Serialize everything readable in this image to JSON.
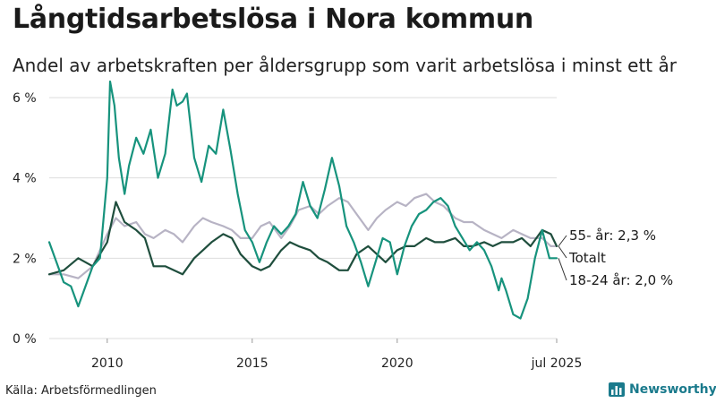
{
  "header": {
    "title": "Långtidsarbetslösa i Nora kommun",
    "subtitle": "Andel av arbetskraften per åldersgrupp som varit arbetslösa i minst ett år"
  },
  "footer": {
    "source": "Källa: Arbetsförmedlingen",
    "brand": "Newsworthy"
  },
  "chart_data": {
    "type": "line",
    "y_tick_labels": [
      "0 %",
      "2 %",
      "4 %",
      "6 %"
    ],
    "y_ticks": [
      0,
      2,
      4,
      6
    ],
    "ylim": [
      0,
      6.2
    ],
    "x_ticks": [
      {
        "x": 2010.0,
        "label": "2010"
      },
      {
        "x": 2015.0,
        "label": "2015"
      },
      {
        "x": 2020.0,
        "label": "2020"
      },
      {
        "x": 2025.5,
        "label": "jul 2025"
      }
    ],
    "xlim": [
      2008.0,
      2025.5
    ],
    "grid": true,
    "legend": "labels at line ends",
    "series": [
      {
        "name": "55- år",
        "end_label": "55- år: 2,3 %",
        "color": "#b7b3c4",
        "points": [
          [
            2008.0,
            1.6
          ],
          [
            2008.5,
            1.6
          ],
          [
            2009.0,
            1.5
          ],
          [
            2009.5,
            1.8
          ],
          [
            2010.0,
            2.6
          ],
          [
            2010.3,
            3.0
          ],
          [
            2010.6,
            2.8
          ],
          [
            2011.0,
            2.9
          ],
          [
            2011.3,
            2.6
          ],
          [
            2011.6,
            2.5
          ],
          [
            2012.0,
            2.7
          ],
          [
            2012.3,
            2.6
          ],
          [
            2012.6,
            2.4
          ],
          [
            2013.0,
            2.8
          ],
          [
            2013.3,
            3.0
          ],
          [
            2013.6,
            2.9
          ],
          [
            2014.0,
            2.8
          ],
          [
            2014.3,
            2.7
          ],
          [
            2014.6,
            2.5
          ],
          [
            2015.0,
            2.5
          ],
          [
            2015.3,
            2.8
          ],
          [
            2015.6,
            2.9
          ],
          [
            2016.0,
            2.5
          ],
          [
            2016.3,
            2.8
          ],
          [
            2016.6,
            3.2
          ],
          [
            2017.0,
            3.3
          ],
          [
            2017.3,
            3.1
          ],
          [
            2017.6,
            3.3
          ],
          [
            2018.0,
            3.5
          ],
          [
            2018.3,
            3.4
          ],
          [
            2018.6,
            3.1
          ],
          [
            2019.0,
            2.7
          ],
          [
            2019.3,
            3.0
          ],
          [
            2019.6,
            3.2
          ],
          [
            2020.0,
            3.4
          ],
          [
            2020.3,
            3.3
          ],
          [
            2020.6,
            3.5
          ],
          [
            2021.0,
            3.6
          ],
          [
            2021.3,
            3.4
          ],
          [
            2021.6,
            3.3
          ],
          [
            2022.0,
            3.0
          ],
          [
            2022.3,
            2.9
          ],
          [
            2022.6,
            2.9
          ],
          [
            2023.0,
            2.7
          ],
          [
            2023.3,
            2.6
          ],
          [
            2023.6,
            2.5
          ],
          [
            2024.0,
            2.7
          ],
          [
            2024.3,
            2.6
          ],
          [
            2024.6,
            2.5
          ],
          [
            2025.0,
            2.5
          ],
          [
            2025.3,
            2.3
          ],
          [
            2025.5,
            2.3
          ]
        ]
      },
      {
        "name": "Totalt",
        "end_label": "Totalt",
        "color": "#1f4e3d",
        "points": [
          [
            2008.0,
            1.6
          ],
          [
            2008.5,
            1.7
          ],
          [
            2009.0,
            2.0
          ],
          [
            2009.5,
            1.8
          ],
          [
            2010.0,
            2.4
          ],
          [
            2010.3,
            3.4
          ],
          [
            2010.6,
            2.9
          ],
          [
            2011.0,
            2.7
          ],
          [
            2011.3,
            2.5
          ],
          [
            2011.6,
            1.8
          ],
          [
            2012.0,
            1.8
          ],
          [
            2012.3,
            1.7
          ],
          [
            2012.6,
            1.6
          ],
          [
            2013.0,
            2.0
          ],
          [
            2013.3,
            2.2
          ],
          [
            2013.6,
            2.4
          ],
          [
            2014.0,
            2.6
          ],
          [
            2014.3,
            2.5
          ],
          [
            2014.6,
            2.1
          ],
          [
            2015.0,
            1.8
          ],
          [
            2015.3,
            1.7
          ],
          [
            2015.6,
            1.8
          ],
          [
            2016.0,
            2.2
          ],
          [
            2016.3,
            2.4
          ],
          [
            2016.6,
            2.3
          ],
          [
            2017.0,
            2.2
          ],
          [
            2017.3,
            2.0
          ],
          [
            2017.6,
            1.9
          ],
          [
            2018.0,
            1.7
          ],
          [
            2018.3,
            1.7
          ],
          [
            2018.6,
            2.1
          ],
          [
            2019.0,
            2.3
          ],
          [
            2019.3,
            2.1
          ],
          [
            2019.6,
            1.9
          ],
          [
            2020.0,
            2.2
          ],
          [
            2020.3,
            2.3
          ],
          [
            2020.6,
            2.3
          ],
          [
            2021.0,
            2.5
          ],
          [
            2021.3,
            2.4
          ],
          [
            2021.6,
            2.4
          ],
          [
            2022.0,
            2.5
          ],
          [
            2022.3,
            2.3
          ],
          [
            2022.6,
            2.3
          ],
          [
            2023.0,
            2.4
          ],
          [
            2023.3,
            2.3
          ],
          [
            2023.6,
            2.4
          ],
          [
            2024.0,
            2.4
          ],
          [
            2024.3,
            2.5
          ],
          [
            2024.6,
            2.3
          ],
          [
            2025.0,
            2.7
          ],
          [
            2025.3,
            2.6
          ],
          [
            2025.5,
            2.3
          ]
        ]
      },
      {
        "name": "18-24 år",
        "end_label": "18-24 år: 2,0 %",
        "color": "#17937d",
        "points": [
          [
            2008.0,
            2.4
          ],
          [
            2008.25,
            1.9
          ],
          [
            2008.5,
            1.4
          ],
          [
            2008.75,
            1.3
          ],
          [
            2009.0,
            0.8
          ],
          [
            2009.25,
            1.3
          ],
          [
            2009.5,
            1.8
          ],
          [
            2009.75,
            2.0
          ],
          [
            2010.0,
            4.0
          ],
          [
            2010.1,
            6.4
          ],
          [
            2010.25,
            5.8
          ],
          [
            2010.4,
            4.5
          ],
          [
            2010.6,
            3.6
          ],
          [
            2010.75,
            4.3
          ],
          [
            2011.0,
            5.0
          ],
          [
            2011.25,
            4.6
          ],
          [
            2011.5,
            5.2
          ],
          [
            2011.75,
            4.0
          ],
          [
            2012.0,
            4.6
          ],
          [
            2012.25,
            6.2
          ],
          [
            2012.4,
            5.8
          ],
          [
            2012.6,
            5.9
          ],
          [
            2012.75,
            6.1
          ],
          [
            2013.0,
            4.5
          ],
          [
            2013.25,
            3.9
          ],
          [
            2013.5,
            4.8
          ],
          [
            2013.75,
            4.6
          ],
          [
            2014.0,
            5.7
          ],
          [
            2014.25,
            4.7
          ],
          [
            2014.5,
            3.6
          ],
          [
            2014.75,
            2.7
          ],
          [
            2015.0,
            2.4
          ],
          [
            2015.25,
            1.9
          ],
          [
            2015.5,
            2.4
          ],
          [
            2015.75,
            2.8
          ],
          [
            2016.0,
            2.6
          ],
          [
            2016.25,
            2.8
          ],
          [
            2016.5,
            3.1
          ],
          [
            2016.75,
            3.9
          ],
          [
            2017.0,
            3.3
          ],
          [
            2017.25,
            3.0
          ],
          [
            2017.5,
            3.7
          ],
          [
            2017.75,
            4.5
          ],
          [
            2018.0,
            3.8
          ],
          [
            2018.25,
            2.8
          ],
          [
            2018.5,
            2.4
          ],
          [
            2018.75,
            1.9
          ],
          [
            2019.0,
            1.3
          ],
          [
            2019.25,
            1.9
          ],
          [
            2019.5,
            2.5
          ],
          [
            2019.75,
            2.4
          ],
          [
            2020.0,
            1.6
          ],
          [
            2020.25,
            2.3
          ],
          [
            2020.5,
            2.8
          ],
          [
            2020.75,
            3.1
          ],
          [
            2021.0,
            3.2
          ],
          [
            2021.25,
            3.4
          ],
          [
            2021.5,
            3.5
          ],
          [
            2021.75,
            3.3
          ],
          [
            2022.0,
            2.8
          ],
          [
            2022.25,
            2.5
          ],
          [
            2022.5,
            2.2
          ],
          [
            2022.75,
            2.4
          ],
          [
            2023.0,
            2.2
          ],
          [
            2023.25,
            1.8
          ],
          [
            2023.5,
            1.2
          ],
          [
            2023.6,
            1.5
          ],
          [
            2023.75,
            1.2
          ],
          [
            2024.0,
            0.6
          ],
          [
            2024.25,
            0.5
          ],
          [
            2024.5,
            1.0
          ],
          [
            2024.75,
            2.0
          ],
          [
            2025.0,
            2.7
          ],
          [
            2025.25,
            2.0
          ],
          [
            2025.5,
            2.0
          ]
        ]
      }
    ]
  }
}
